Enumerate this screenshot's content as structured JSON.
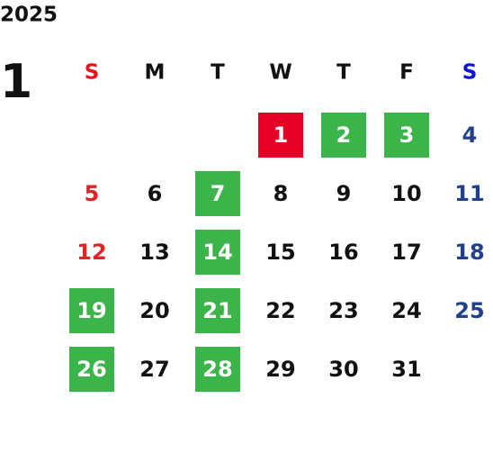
{
  "year": "2025",
  "month": "1",
  "weekdays": [
    "S",
    "M",
    "T",
    "W",
    "T",
    "F",
    "S"
  ],
  "weeks": [
    [
      null,
      null,
      null,
      1,
      2,
      3,
      4
    ],
    [
      5,
      6,
      7,
      8,
      9,
      10,
      11
    ],
    [
      12,
      13,
      14,
      15,
      16,
      17,
      18
    ],
    [
      19,
      20,
      21,
      22,
      23,
      24,
      25
    ],
    [
      26,
      27,
      28,
      29,
      30,
      31,
      null
    ]
  ],
  "red_days": [
    1
  ],
  "green_days": [
    2,
    3,
    7,
    14,
    19,
    21,
    26,
    28
  ],
  "colors": {
    "sunday_header": "#e8141c",
    "saturday_header": "#0a14d8",
    "sunday": "#e02424",
    "saturday": "#1f3f8f",
    "weekday": "#111111",
    "red_box": "#e60026",
    "green_box": "#3bb54a",
    "box_text": "#ffffff"
  }
}
